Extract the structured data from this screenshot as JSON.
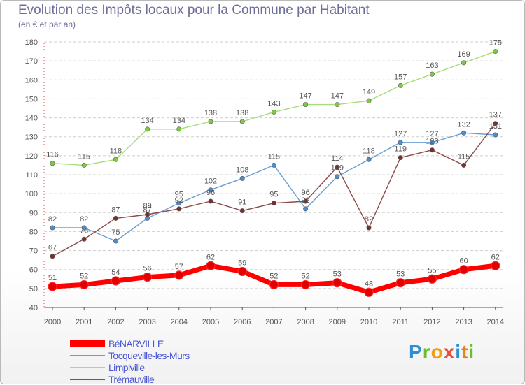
{
  "title": "Evolution des Impôts locaux pour la Commune par Habitant",
  "subtitle": "(en € et par an)",
  "logo": {
    "letters": [
      "P",
      "r",
      "o",
      "x",
      "i",
      "t",
      "i"
    ],
    "colors": [
      "#2f8fd6",
      "#6bbf2e",
      "#f39c12",
      "#e74c3c",
      "#2f8fd6",
      "#e67e22",
      "#6bbf2e"
    ]
  },
  "chart_data": {
    "type": "line",
    "title": "Evolution des Impôts locaux pour la Commune par Habitant",
    "subtitle": "(en € et par an)",
    "xlabel": "",
    "ylabel": "",
    "ylim": [
      40,
      180
    ],
    "yticks": [
      40,
      50,
      60,
      70,
      80,
      90,
      100,
      110,
      120,
      130,
      140,
      150,
      160,
      170,
      180
    ],
    "categories": [
      "2000",
      "2001",
      "2002",
      "2003",
      "2004",
      "2005",
      "2006",
      "2007",
      "2008",
      "2009",
      "2010",
      "2011",
      "2012",
      "2013",
      "2014"
    ],
    "legend_position": "bottom-left",
    "grid": "horizontal dashed",
    "series": [
      {
        "name": "BéNARVILLE",
        "color": "#ff0000",
        "marker": "#e00000",
        "width": 7,
        "values": [
          51,
          52,
          54,
          56,
          57,
          62,
          59,
          52,
          52,
          53,
          48,
          53,
          55,
          60,
          62
        ]
      },
      {
        "name": "Tocqueville-les-Murs",
        "color": "#6a9ed2",
        "marker": "#4b8fd0",
        "width": 1.4,
        "values": [
          82,
          82,
          75,
          87,
          95,
          102,
          108,
          115,
          92,
          109,
          118,
          127,
          127,
          132,
          131
        ]
      },
      {
        "name": "Limpiville",
        "color": "#a7dc7a",
        "marker": "#7ccc3e",
        "width": 1.4,
        "values": [
          116,
          115,
          118,
          134,
          134,
          138,
          138,
          143,
          147,
          147,
          149,
          157,
          163,
          169,
          175
        ]
      },
      {
        "name": "Trémauville",
        "color": "#8c4a4a",
        "marker": "#7a2e2e",
        "width": 1.4,
        "values": [
          67,
          76,
          87,
          89,
          92,
          96,
          91,
          95,
          96,
          114,
          82,
          119,
          123,
          115,
          137
        ]
      }
    ]
  }
}
